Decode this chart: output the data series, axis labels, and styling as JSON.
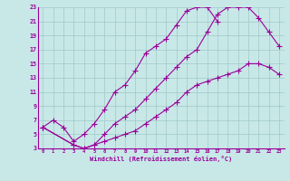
{
  "xlabel": "Windchill (Refroidissement éolien,°C)",
  "xlim": [
    -0.5,
    23.5
  ],
  "ylim": [
    3,
    23
  ],
  "xticks": [
    0,
    1,
    2,
    3,
    4,
    5,
    6,
    7,
    8,
    9,
    10,
    11,
    12,
    13,
    14,
    15,
    16,
    17,
    18,
    19,
    20,
    21,
    22,
    23
  ],
  "yticks": [
    3,
    5,
    7,
    9,
    11,
    13,
    15,
    17,
    19,
    21,
    23
  ],
  "background_color": "#c8e8e8",
  "grid_color": "#a0c8c8",
  "line_color": "#990099",
  "line1_x": [
    0,
    1,
    2,
    3,
    4,
    5,
    6,
    7,
    8,
    9,
    10,
    11,
    12,
    13,
    14,
    15,
    16,
    17
  ],
  "line1_y": [
    6,
    7,
    6,
    4,
    5,
    6.5,
    8.5,
    11,
    12,
    14,
    16.5,
    17.5,
    18.5,
    20.5,
    22.5,
    23,
    23,
    21
  ],
  "line2_x": [
    0,
    3,
    4,
    5,
    6,
    7,
    8,
    9,
    10,
    11,
    12,
    13,
    14,
    15,
    16,
    17,
    18,
    19,
    20,
    21,
    22,
    23
  ],
  "line2_y": [
    6,
    3.5,
    3,
    3.5,
    5,
    6.5,
    7.5,
    8.5,
    10,
    11.5,
    13,
    14.5,
    16,
    17,
    19.5,
    22,
    23,
    23,
    23,
    21.5,
    19.5,
    17.5
  ],
  "line3_x": [
    0,
    3,
    4,
    5,
    6,
    7,
    8,
    9,
    10,
    11,
    12,
    13,
    14,
    15,
    16,
    17,
    18,
    19,
    20,
    21,
    22,
    23
  ],
  "line3_y": [
    6,
    3.5,
    3,
    3.5,
    4,
    4.5,
    5,
    5.5,
    6.5,
    7.5,
    8.5,
    9.5,
    11,
    12,
    12.5,
    13,
    13.5,
    14,
    15,
    15,
    14.5,
    13.5
  ]
}
